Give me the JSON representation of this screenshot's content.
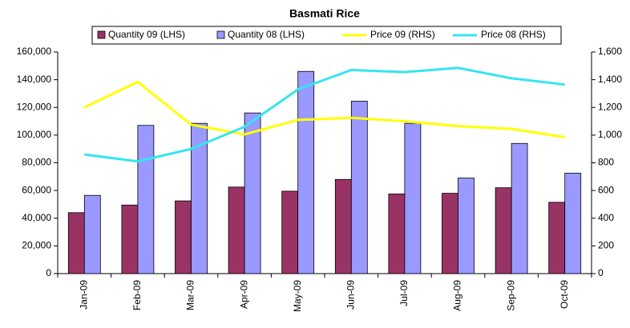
{
  "chart_data": {
    "type": "bar_line",
    "title": "Basmati Rice",
    "categories": [
      "Jan-09",
      "Feb-09",
      "Mar-09",
      "Apr-09",
      "May-09",
      "Jun-09",
      "Jul-09",
      "Aug-09",
      "Sep-09",
      "Oct-09"
    ],
    "series": [
      {
        "name": "Quantity 09 (LHS)",
        "type": "bar",
        "color": "#993366",
        "values": [
          44000,
          49500,
          52500,
          62500,
          59500,
          68000,
          57500,
          58000,
          62000,
          51500
        ]
      },
      {
        "name": "Quantity 08 (LHS)",
        "type": "bar",
        "color": "#9999ff",
        "values": [
          56500,
          107000,
          108500,
          116000,
          146000,
          124500,
          108500,
          69000,
          94000,
          72500
        ]
      },
      {
        "name": "Price 09 (RHS)",
        "type": "line",
        "axis": "y2",
        "color": "#ffff00",
        "values": [
          1200,
          1385,
          1075,
          1005,
          1110,
          1125,
          1100,
          1065,
          1045,
          985
        ]
      },
      {
        "name": "Price 08 (RHS)",
        "type": "line",
        "axis": "y2",
        "color": "#33e6f0",
        "values": [
          860,
          810,
          900,
          1060,
          1330,
          1470,
          1455,
          1485,
          1410,
          1365
        ]
      }
    ],
    "ylim": [
      0,
      160000
    ],
    "yticks": [
      0,
      {
        "value": 20000,
        "label": "20,000"
      },
      {
        "value": 40000,
        "label": "40,000"
      },
      {
        "value": 60000,
        "label": "60,000"
      },
      {
        "value": 80000,
        "label": "80,000"
      },
      {
        "value": 100000,
        "label": "100,000"
      },
      {
        "value": 120000,
        "label": "120,000"
      },
      {
        "value": 140000,
        "label": "140,000"
      },
      {
        "value": 160000,
        "label": "160,000"
      }
    ],
    "y2lim": [
      0,
      1600
    ],
    "y2ticks": [
      0,
      200,
      400,
      600,
      800,
      {
        "value": 1000,
        "label": "1,000"
      },
      {
        "value": 1200,
        "label": "1,200"
      },
      {
        "value": 1400,
        "label": "1,400"
      },
      {
        "value": 1600,
        "label": "1,600"
      }
    ],
    "grid": false
  }
}
